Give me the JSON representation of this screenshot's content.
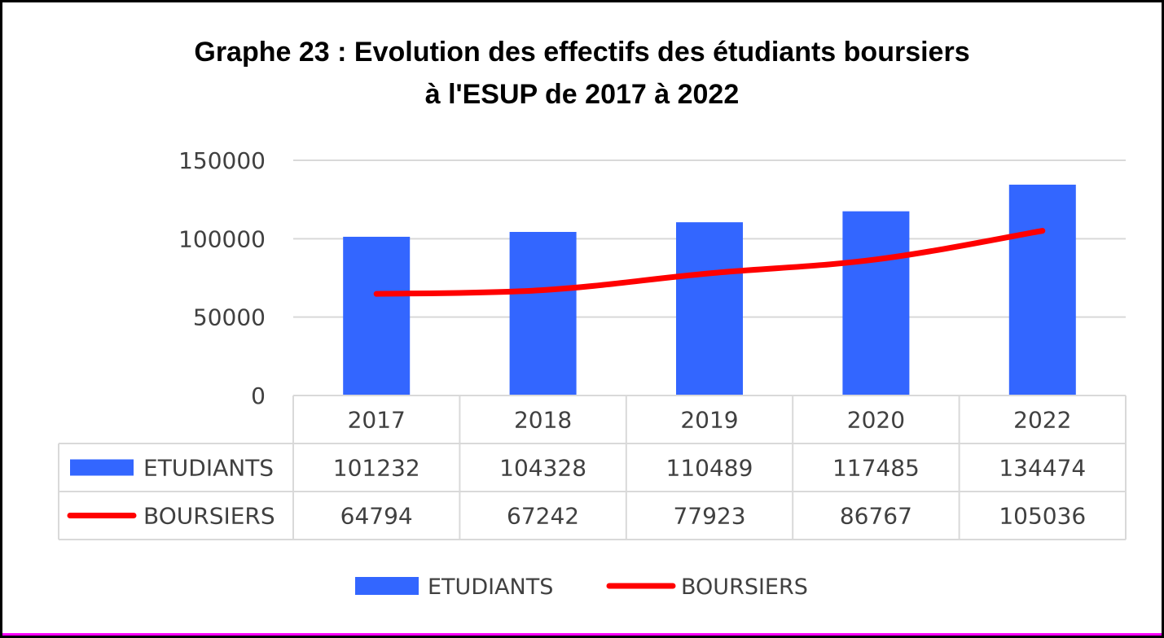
{
  "chart_data": {
    "type": "bar",
    "title": [
      "Graphe 23 : Evolution des effectifs des étudiants boursiers",
      "à l'ESUP de 2017 à 2022"
    ],
    "categories": [
      "2017",
      "2018",
      "2019",
      "2020",
      "2022"
    ],
    "series": [
      {
        "name": "ETUDIANTS",
        "type": "bar",
        "color": "#3366ff",
        "values": [
          101232,
          104328,
          110489,
          117485,
          134474
        ]
      },
      {
        "name": "BOURSIERS",
        "type": "line",
        "color": "#ff0000",
        "values": [
          64794,
          67242,
          77923,
          86767,
          105036
        ]
      }
    ],
    "yticks": [
      "0",
      "50000",
      "100000",
      "150000"
    ],
    "ylim": [
      0,
      150000
    ],
    "grid": true,
    "data_table": true,
    "legend": "bottom"
  }
}
